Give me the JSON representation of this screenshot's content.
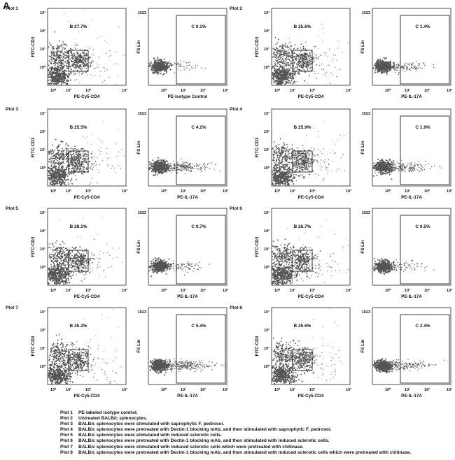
{
  "panel_label": "A",
  "chart_data": [
    {
      "type": "scatter",
      "plot_title": "Plot 1",
      "kind": "gate-cd3-cd4",
      "xlabel": "PE-Cy5-CD4",
      "ylabel": "FITC-CD3",
      "gate_label": "B",
      "gate_percent": "27.7%",
      "x_ticks": [
        "10⁰",
        "10¹",
        "10²",
        "10³"
      ],
      "y_ticks": [
        "10⁰",
        "10¹",
        "10²",
        "10³"
      ]
    },
    {
      "type": "scatter",
      "plot_title": "",
      "kind": "gate-il17",
      "xlabel": "PE-Isotype Control",
      "ylabel": "FS Lin",
      "y_top_tick": "1023",
      "gate_label": "C",
      "gate_percent": "0.1%",
      "x_ticks": [
        "10⁰",
        "10¹",
        "10²",
        "10³"
      ],
      "intensity": 0.05
    },
    {
      "type": "scatter",
      "plot_title": "Plot 2",
      "kind": "gate-cd3-cd4",
      "xlabel": "PE-Cy5-CD4",
      "ylabel": "FITC-CD3",
      "gate_label": "B",
      "gate_percent": "25.6%",
      "x_ticks": [
        "10⁰",
        "10¹",
        "10²",
        "10³"
      ],
      "y_ticks": [
        "10⁰",
        "10¹",
        "10²",
        "10³"
      ]
    },
    {
      "type": "scatter",
      "plot_title": "",
      "kind": "gate-il17",
      "xlabel": "PE-IL-17A",
      "ylabel": "FS Lin",
      "y_top_tick": "1023",
      "gate_label": "C",
      "gate_percent": "1.4%",
      "x_ticks": [
        "10⁰",
        "10¹",
        "10²",
        "10³"
      ],
      "intensity": 0.35
    },
    {
      "type": "scatter",
      "plot_title": "Plot 3",
      "kind": "gate-cd3-cd4",
      "xlabel": "PE-Cy5-CD4",
      "ylabel": "FITC-CD3",
      "gate_label": "B",
      "gate_percent": "25.5%",
      "x_ticks": [
        "10⁰",
        "10¹",
        "10²",
        "10³"
      ],
      "y_ticks": [
        "10⁰",
        "10¹",
        "10²",
        "10³"
      ]
    },
    {
      "type": "scatter",
      "plot_title": "",
      "kind": "gate-il17",
      "xlabel": "PE-IL-17A",
      "ylabel": "FS Lin",
      "y_top_tick": "1023",
      "gate_label": "C",
      "gate_percent": "4.2%",
      "x_ticks": [
        "10⁰",
        "10¹",
        "10²",
        "10³"
      ],
      "intensity": 0.9
    },
    {
      "type": "scatter",
      "plot_title": "Plot 4",
      "kind": "gate-cd3-cd4",
      "xlabel": "PE-Cy5-CD4",
      "ylabel": "FITC-CD3",
      "gate_label": "B",
      "gate_percent": "25.9%",
      "x_ticks": [
        "10⁰",
        "10¹",
        "10²",
        "10³"
      ],
      "y_ticks": [
        "10⁰",
        "10¹",
        "10²",
        "10³"
      ]
    },
    {
      "type": "scatter",
      "plot_title": "",
      "kind": "gate-il17",
      "xlabel": "PE-IL-17A",
      "ylabel": "FS Lin",
      "y_top_tick": "1023",
      "gate_label": "C",
      "gate_percent": "1.9%",
      "x_ticks": [
        "10⁰",
        "10¹",
        "10²",
        "10³"
      ],
      "intensity": 0.45
    },
    {
      "type": "scatter",
      "plot_title": "Plot 5",
      "kind": "gate-cd3-cd4",
      "xlabel": "PE-Cy5-CD4",
      "ylabel": "FITC-CD3",
      "gate_label": "B",
      "gate_percent": "28.1%",
      "x_ticks": [
        "10⁰",
        "10¹",
        "10²",
        "10³"
      ],
      "y_ticks": [
        "10⁰",
        "10¹",
        "10²",
        "10³"
      ]
    },
    {
      "type": "scatter",
      "plot_title": "",
      "kind": "gate-il17",
      "xlabel": "PE-IL-17A",
      "ylabel": "FS Lin",
      "y_top_tick": "1023",
      "gate_label": "C",
      "gate_percent": "0.7%",
      "x_ticks": [
        "10⁰",
        "10¹",
        "10²",
        "10³"
      ],
      "intensity": 0.2
    },
    {
      "type": "scatter",
      "plot_title": "Plot 6",
      "kind": "gate-cd3-cd4",
      "xlabel": "PE-Cy5-CD4",
      "ylabel": "FITC-CD3",
      "gate_label": "B",
      "gate_percent": "26.7%",
      "x_ticks": [
        "10⁰",
        "10¹",
        "10²",
        "10³"
      ],
      "y_ticks": [
        "10⁰",
        "10¹",
        "10²",
        "10³"
      ]
    },
    {
      "type": "scatter",
      "plot_title": "",
      "kind": "gate-il17",
      "xlabel": "PE-IL-17A",
      "ylabel": "FS Lin",
      "y_top_tick": "1023",
      "gate_label": "C",
      "gate_percent": "0.5%",
      "x_ticks": [
        "10⁰",
        "10¹",
        "10²",
        "10³"
      ],
      "intensity": 0.15
    },
    {
      "type": "scatter",
      "plot_title": "Plot 7",
      "kind": "gate-cd3-cd4",
      "xlabel": "PE-Cy5-CD4",
      "ylabel": "FITC-CD3",
      "gate_label": "B",
      "gate_percent": "25.2%",
      "x_ticks": [
        "10⁰",
        "10¹",
        "10²",
        "10³"
      ],
      "y_ticks": [
        "10⁰",
        "10¹",
        "10²",
        "10³"
      ]
    },
    {
      "type": "scatter",
      "plot_title": "",
      "kind": "gate-il17",
      "xlabel": "PE-IL-17A",
      "ylabel": "FS Lin",
      "y_top_tick": "1023",
      "gate_label": "C",
      "gate_percent": "5.4%",
      "x_ticks": [
        "10⁰",
        "10¹",
        "10²",
        "10³"
      ],
      "intensity": 1.0
    },
    {
      "type": "scatter",
      "plot_title": "Plot 8",
      "kind": "gate-cd3-cd4",
      "xlabel": "PE-Cy5-CD4",
      "ylabel": "FITC-CD3",
      "gate_label": "B",
      "gate_percent": "25.6%",
      "x_ticks": [
        "10⁰",
        "10¹",
        "10²",
        "10³"
      ],
      "y_ticks": [
        "10⁰",
        "10¹",
        "10²",
        "10³"
      ]
    },
    {
      "type": "scatter",
      "plot_title": "",
      "kind": "gate-il17",
      "xlabel": "PE-IL-17A",
      "ylabel": "FS Lin",
      "y_top_tick": "1023",
      "gate_label": "C",
      "gate_percent": "2.4%",
      "x_ticks": [
        "10⁰",
        "10¹",
        "10²",
        "10³"
      ],
      "intensity": 0.55
    }
  ],
  "legend": [
    {
      "key": "Plot 1",
      "text": "PE-labeled isotype control."
    },
    {
      "key": "Plot 2",
      "text": "Untreated BALB/c splenocytes."
    },
    {
      "key": "Plot 3",
      "text": "BALB/c splenocytes were stimulated with saprophytic F. pedrosoi."
    },
    {
      "key": "Plot 4",
      "text": "BALB/c splenocytes were pretreated with Dectin-1 blocking mAb, and then stimulated with saprophytic F. pedrosoi."
    },
    {
      "key": "Plot 5",
      "text": "BALB/c splenocytes were stimulated with induced sclerotic cells."
    },
    {
      "key": "Plot 6",
      "text": "BALB/c splenocytes were pretreated with Dectin-1 blocking mAb, and then stimulated with induced sclerotic cells."
    },
    {
      "key": "Plot 7",
      "text": "BALB/c splenocytes were stimulated with induced sclerotic cells which were pretreated with chitinase."
    },
    {
      "key": "Plot 8",
      "text": "BALB/c splenocytes were pretreated with Dectin-1 blocking mAb, and then stimulated with induced sclerotic cells which were pretreated with chitinase."
    }
  ],
  "colors": {
    "dots": "#555555",
    "axis": "#222222"
  }
}
